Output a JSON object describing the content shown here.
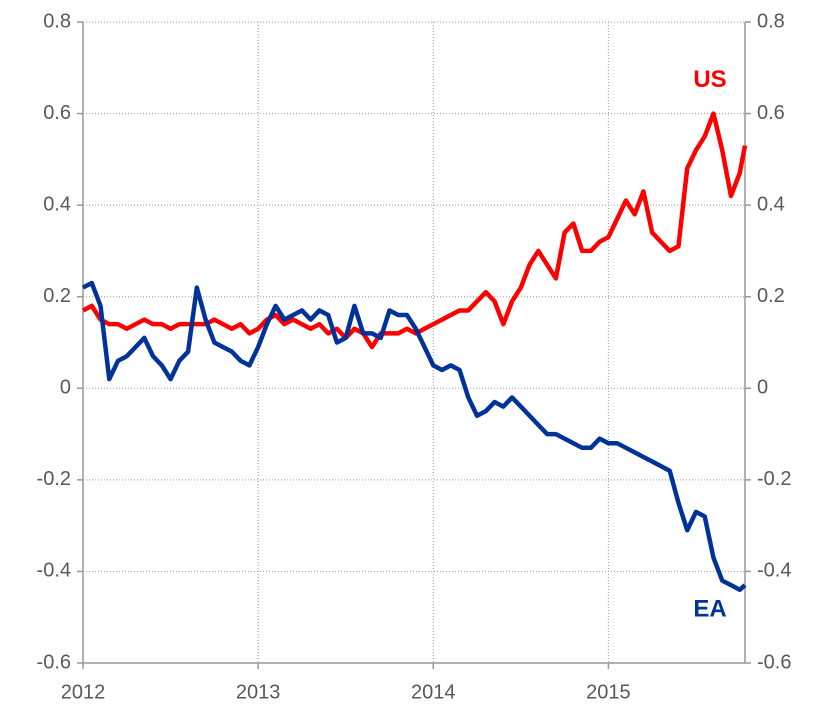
{
  "chart_data": {
    "type": "line",
    "x": [
      2012.0,
      2012.05,
      2012.1,
      2012.15,
      2012.2,
      2012.25,
      2012.3,
      2012.35,
      2012.4,
      2012.45,
      2012.5,
      2012.55,
      2012.6,
      2012.65,
      2012.7,
      2012.75,
      2012.8,
      2012.85,
      2012.9,
      2012.95,
      2013.0,
      2013.05,
      2013.1,
      2013.15,
      2013.2,
      2013.25,
      2013.3,
      2013.35,
      2013.4,
      2013.45,
      2013.5,
      2013.55,
      2013.6,
      2013.65,
      2013.7,
      2013.75,
      2013.8,
      2013.85,
      2013.9,
      2013.95,
      2014.0,
      2014.05,
      2014.1,
      2014.15,
      2014.2,
      2014.25,
      2014.3,
      2014.35,
      2014.4,
      2014.45,
      2014.5,
      2014.55,
      2014.6,
      2014.65,
      2014.7,
      2014.75,
      2014.8,
      2014.85,
      2014.9,
      2014.95,
      2015.0,
      2015.05,
      2015.1,
      2015.15,
      2015.2,
      2015.25,
      2015.3,
      2015.35,
      2015.4,
      2015.45,
      2015.5,
      2015.55,
      2015.6,
      2015.65,
      2015.7,
      2015.75,
      2015.78
    ],
    "series": [
      {
        "name": "US",
        "color": "#ff0000",
        "values": [
          0.17,
          0.18,
          0.15,
          0.14,
          0.14,
          0.13,
          0.14,
          0.15,
          0.14,
          0.14,
          0.13,
          0.14,
          0.14,
          0.14,
          0.14,
          0.15,
          0.14,
          0.13,
          0.14,
          0.12,
          0.13,
          0.15,
          0.16,
          0.14,
          0.15,
          0.14,
          0.13,
          0.14,
          0.12,
          0.13,
          0.11,
          0.13,
          0.12,
          0.09,
          0.12,
          0.12,
          0.12,
          0.13,
          0.12,
          0.13,
          0.14,
          0.15,
          0.16,
          0.17,
          0.17,
          0.19,
          0.21,
          0.19,
          0.14,
          0.19,
          0.22,
          0.27,
          0.3,
          0.27,
          0.24,
          0.34,
          0.36,
          0.3,
          0.3,
          0.32,
          0.33,
          0.37,
          0.41,
          0.38,
          0.43,
          0.34,
          0.32,
          0.3,
          0.31,
          0.48,
          0.52,
          0.55,
          0.6,
          0.52,
          0.42,
          0.47,
          0.53
        ]
      },
      {
        "name": "EA",
        "color": "#003399",
        "values": [
          0.22,
          0.23,
          0.18,
          0.02,
          0.06,
          0.07,
          0.09,
          0.11,
          0.07,
          0.05,
          0.02,
          0.06,
          0.08,
          0.22,
          0.15,
          0.1,
          0.09,
          0.08,
          0.06,
          0.05,
          0.09,
          0.14,
          0.18,
          0.15,
          0.16,
          0.17,
          0.15,
          0.17,
          0.16,
          0.1,
          0.11,
          0.18,
          0.12,
          0.12,
          0.11,
          0.17,
          0.16,
          0.16,
          0.13,
          0.09,
          0.05,
          0.04,
          0.05,
          0.04,
          -0.02,
          -0.06,
          -0.05,
          -0.03,
          -0.04,
          -0.02,
          -0.04,
          -0.06,
          -0.08,
          -0.1,
          -0.1,
          -0.11,
          -0.12,
          -0.13,
          -0.13,
          -0.11,
          -0.12,
          -0.12,
          -0.13,
          -0.14,
          -0.15,
          -0.16,
          -0.17,
          -0.18,
          -0.25,
          -0.31,
          -0.27,
          -0.28,
          -0.37,
          -0.42,
          -0.43,
          -0.44,
          -0.43
        ]
      }
    ],
    "xlim": [
      2012,
      2015.78
    ],
    "xticks": [
      2012,
      2013,
      2014,
      2015
    ],
    "ylim": [
      -0.6,
      0.8
    ],
    "yticks": [
      0.8,
      0.6,
      0.4,
      0.2,
      0,
      -0.2,
      -0.4,
      -0.6
    ],
    "y2lim": [
      -0.6,
      0.8
    ],
    "y2ticks": [
      0.8,
      0.6,
      0.4,
      0.2,
      0,
      -0.2,
      -0.4,
      -0.6
    ],
    "grid": true
  }
}
